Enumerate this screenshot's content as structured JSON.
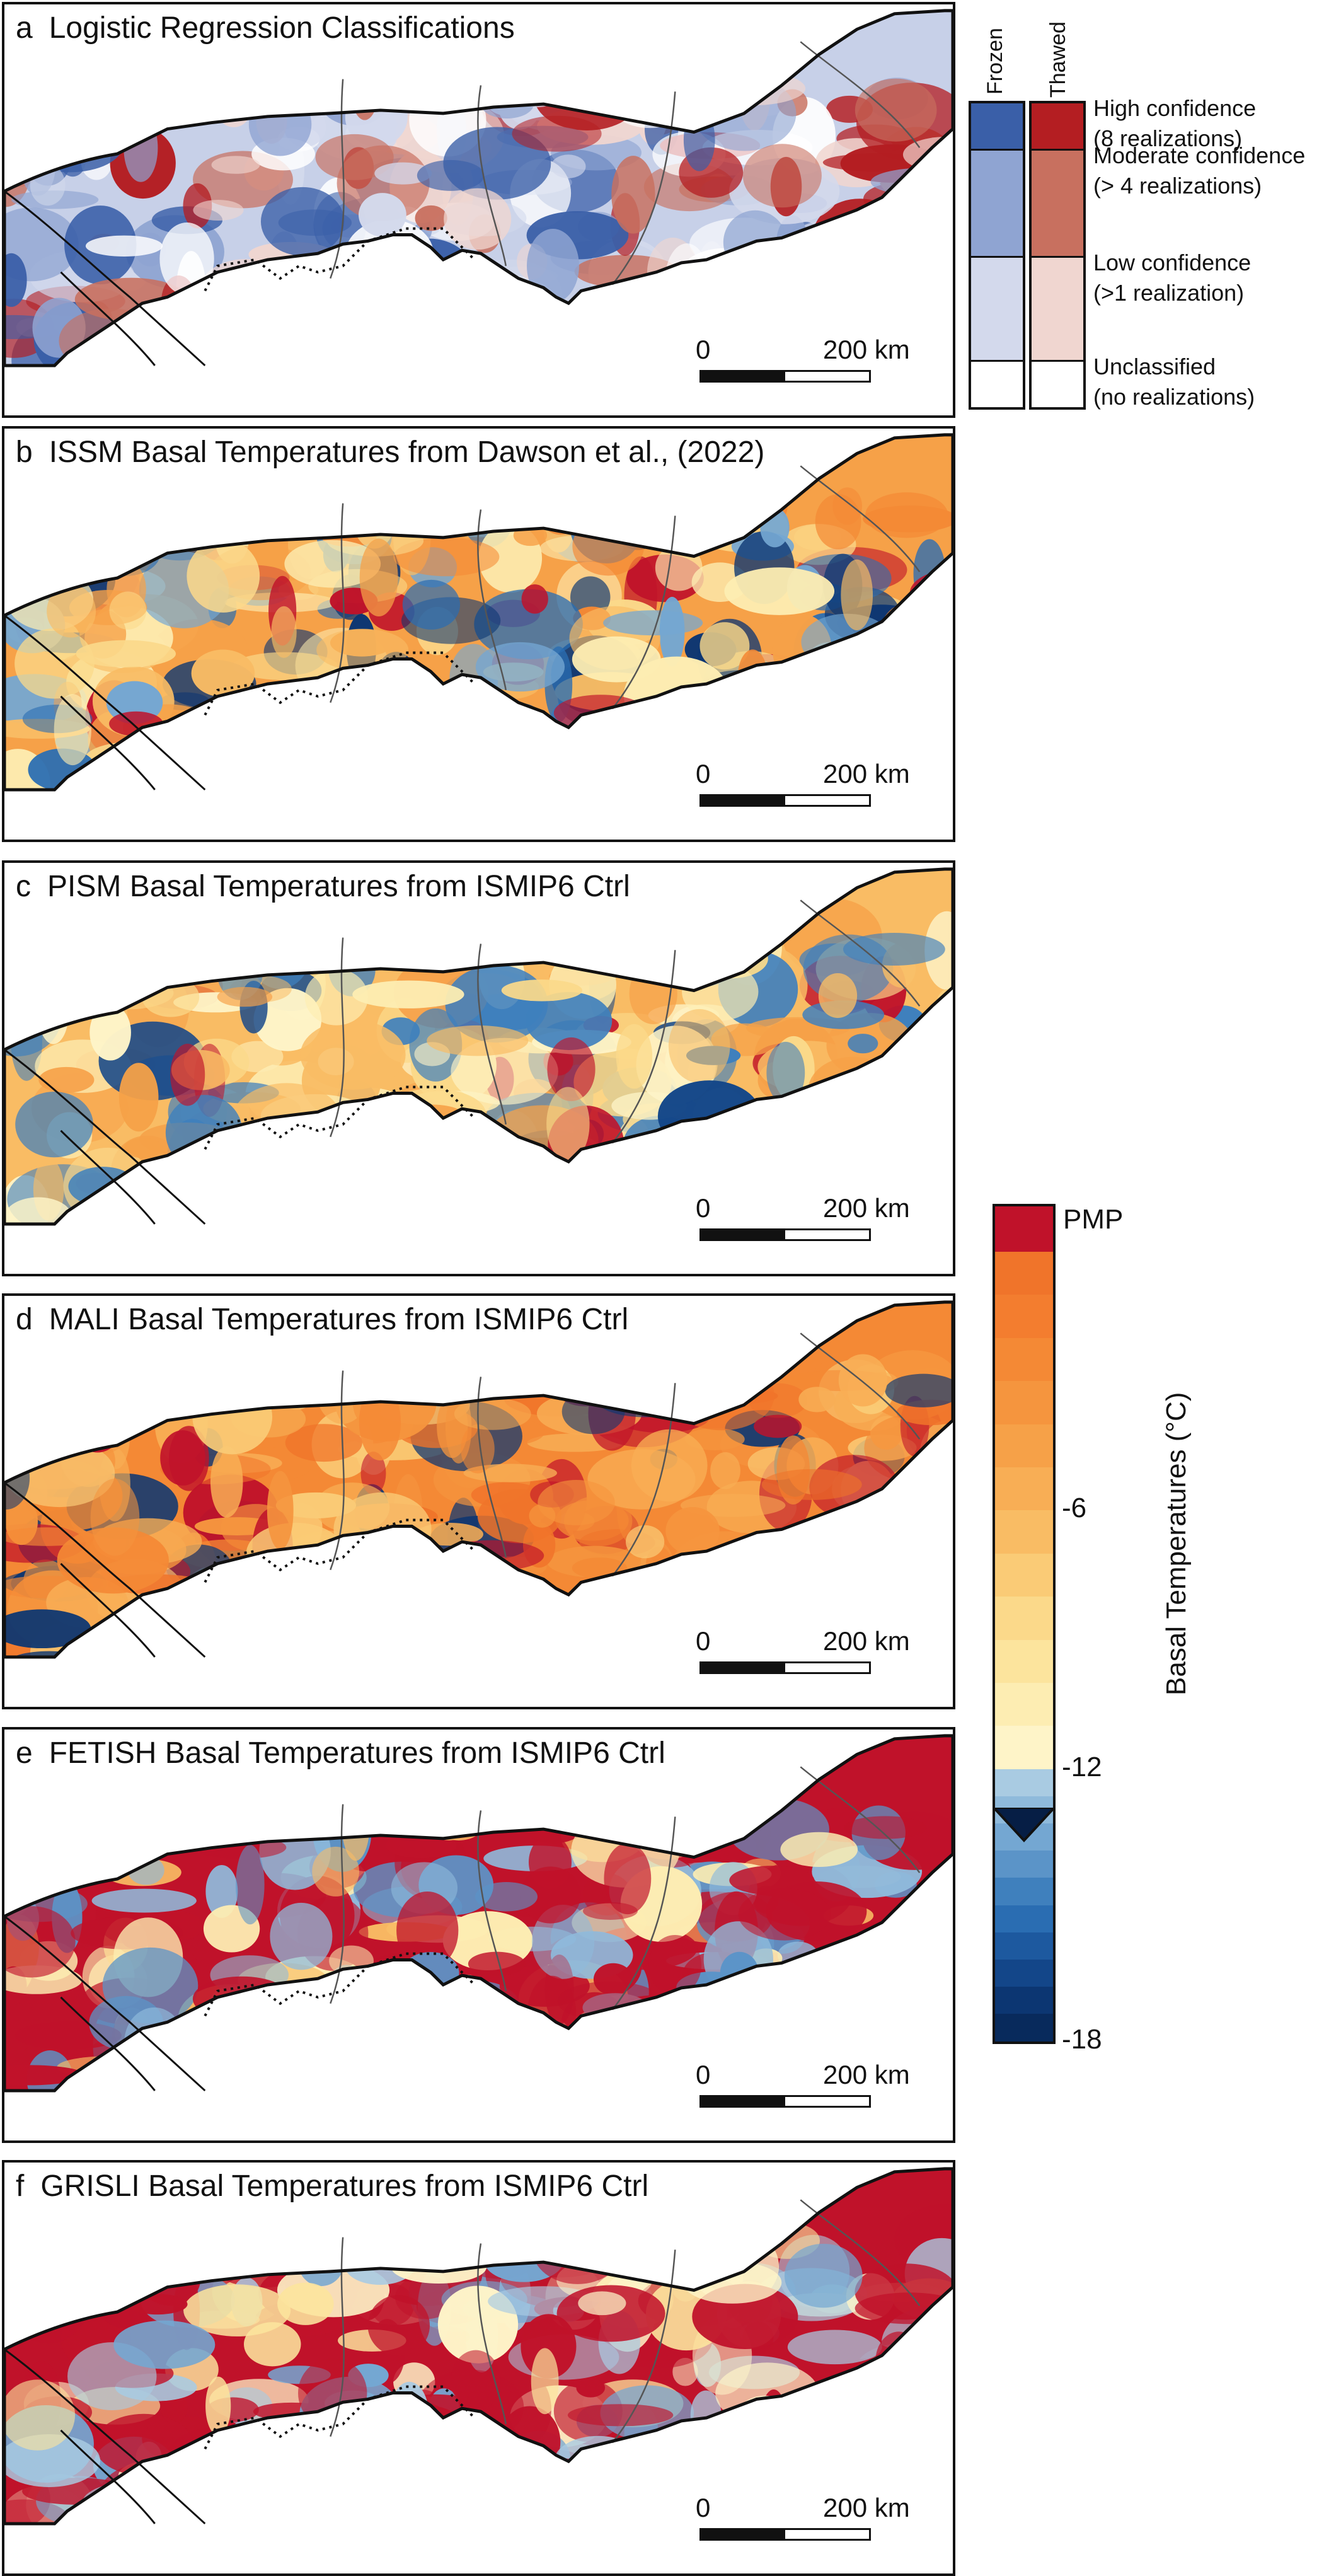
{
  "panels": [
    {
      "letter": "a",
      "title": "Logistic Regression Classifications",
      "style": "classification"
    },
    {
      "letter": "b",
      "title": "ISSM Basal Temperatures from Dawson et al., (2022)",
      "style": "issm"
    },
    {
      "letter": "c",
      "title": "PISM Basal Temperatures from ISMIP6 Ctrl",
      "style": "pism"
    },
    {
      "letter": "d",
      "title": "MALI Basal Temperatures from ISMIP6 Ctrl",
      "style": "mali"
    },
    {
      "letter": "e",
      "title": "FETISH Basal Temperatures from ISMIP6 Ctrl",
      "style": "fetish"
    },
    {
      "letter": "f",
      "title": "GRISLI Basal Temperatures from ISMIP6 Ctrl",
      "style": "grisli"
    }
  ],
  "scale_bar": {
    "start_label": "0",
    "end_label": "200 km"
  },
  "classification_legend": {
    "columns": [
      "Frozen",
      "Thawed"
    ],
    "rows": [
      {
        "label_line1": "High confidence",
        "label_line2": "(8 realizations)",
        "frozen_color": "#3a5fa8",
        "thawed_color": "#b41e22"
      },
      {
        "label_line1": "Moderate confidence",
        "label_line2": "(> 4 realizations)",
        "frozen_color": "#8fa4d2",
        "thawed_color": "#c8705f"
      },
      {
        "label_line1": "Low confidence",
        "label_line2": "(>1 realization)",
        "frozen_color": "#d3d9ec",
        "thawed_color": "#f0d6d0"
      },
      {
        "label_line1": "Unclassified",
        "label_line2": "(no realizations)",
        "frozen_color": "#ffffff",
        "thawed_color": "#ffffff"
      }
    ]
  },
  "colorbar": {
    "title": "Basal Temperatures (°C)",
    "top_label": "PMP",
    "ticks": [
      {
        "label": "-6",
        "value": -6
      },
      {
        "label": "-12",
        "value": -12
      },
      {
        "label": "-18",
        "value": -18
      }
    ],
    "colors": {
      "pmp": "#c0122a",
      "warm": [
        "#f0742a",
        "#f37d2f",
        "#f48935",
        "#f5953e",
        "#f6a148",
        "#f8ae55",
        "#f9bc64",
        "#facb76",
        "#fbd98a",
        "#fce49d",
        "#fdedb2",
        "#fef4c8"
      ],
      "cold": [
        "#a9cbe2",
        "#8fbadb",
        "#74a7d2",
        "#5b94c8",
        "#3f80bd",
        "#2a6db2",
        "#1d599f",
        "#134689",
        "#0c3672",
        "#082a5c"
      ]
    }
  }
}
